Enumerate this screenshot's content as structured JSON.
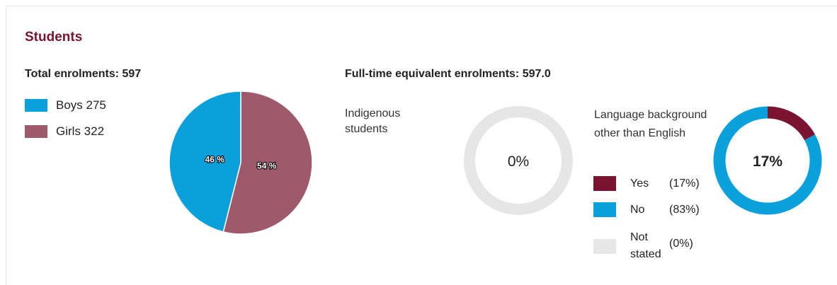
{
  "section_title": "Students",
  "total_enrolments_label": "Total enrolments: 597",
  "fte_label": "Full-time equivalent enrolments: 597.0",
  "gender_legend": [
    {
      "label": "Boys 275",
      "color": "#0aa0dc"
    },
    {
      "label": "Girls 322",
      "color": "#9e5a6a"
    }
  ],
  "indigenous": {
    "label": "Indigenous students",
    "value_text": "0%"
  },
  "language": {
    "label": "Language background other than English",
    "value_text": "17%",
    "legend": [
      {
        "name": "Yes",
        "pct": "(17%)",
        "color": "#7a1431"
      },
      {
        "name": "No",
        "pct": "(83%)",
        "color": "#0aa0dc"
      },
      {
        "name": "Not stated",
        "pct": "(0%)",
        "color": "#e6e6e6"
      }
    ]
  },
  "chart_data": [
    {
      "type": "pie",
      "categories": [
        "Boys",
        "Girls"
      ],
      "values": [
        275,
        322
      ],
      "slice_labels": [
        "46 %",
        "54 %"
      ],
      "colors": [
        "#0aa0dc",
        "#9e5a6a"
      ]
    },
    {
      "type": "pie",
      "categories": [
        "Indigenous"
      ],
      "values": [
        0
      ],
      "center_label": "0%",
      "track_color": "#e6e6e6"
    },
    {
      "type": "pie",
      "categories": [
        "Yes",
        "No",
        "Not stated"
      ],
      "values": [
        17,
        83,
        0
      ],
      "center_label": "17%",
      "colors": [
        "#7a1431",
        "#0aa0dc",
        "#e6e6e6"
      ]
    }
  ]
}
